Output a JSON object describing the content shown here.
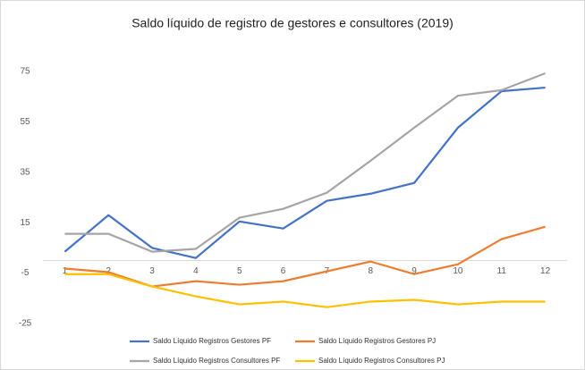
{
  "chart_data": {
    "type": "line",
    "title": "Saldo líquido de registro de gestores e consultores (2019)",
    "categories": [
      "1",
      "2",
      "3",
      "4",
      "5",
      "6",
      "7",
      "8",
      "9",
      "10",
      "11",
      "12"
    ],
    "series": [
      {
        "name": "Saldo Líquido Registros Gestores PF",
        "color": "#4472c4",
        "values": [
          3.5,
          18,
          5,
          1,
          15.5,
          12.7,
          23.7,
          26.5,
          30.8,
          52.7,
          67.2,
          68.6
        ]
      },
      {
        "name": "Saldo Líquido Registros Gestores PJ",
        "color": "#ed7d31",
        "values": [
          -3.2,
          -4.6,
          -10.3,
          -8.2,
          -9.6,
          -8.2,
          -4.3,
          -0.4,
          -5.4,
          -1.5,
          8.5,
          13.4
        ]
      },
      {
        "name": "Saldo Líquido Registros Consultores PF",
        "color": "#a5a5a5",
        "values": [
          10.6,
          10.6,
          3.5,
          4.6,
          17,
          20.5,
          26.9,
          39.6,
          52.7,
          65.4,
          67.6,
          74.3
        ]
      },
      {
        "name": "Saldo Líquido Registros Consultores PJ",
        "color": "#ffc000",
        "values": [
          -5.4,
          -5.4,
          -10.3,
          -14.2,
          -17.4,
          -16.3,
          -18.5,
          -16.3,
          -15.6,
          -17.4,
          -16.3,
          -16.3
        ]
      }
    ],
    "ylim": [
      -25,
      75
    ],
    "yticks": [
      -25,
      -5,
      15,
      35,
      55,
      75
    ],
    "grid": false,
    "legend": "bottom"
  }
}
